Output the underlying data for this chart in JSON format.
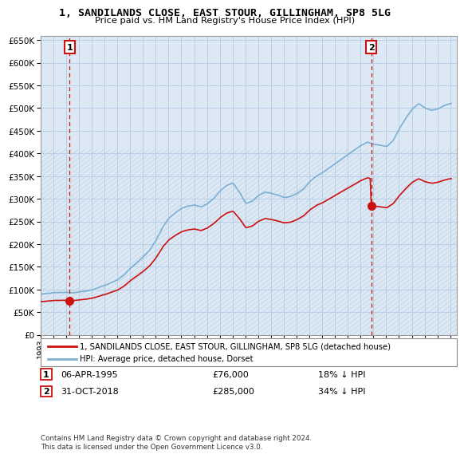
{
  "title": "1, SANDILANDS CLOSE, EAST STOUR, GILLINGHAM, SP8 5LG",
  "subtitle": "Price paid vs. HM Land Registry's House Price Index (HPI)",
  "xlim_start": 1993.0,
  "xlim_end": 2025.5,
  "ylim_min": 0,
  "ylim_max": 660000,
  "yticks": [
    0,
    50000,
    100000,
    150000,
    200000,
    250000,
    300000,
    350000,
    400000,
    450000,
    500000,
    550000,
    600000,
    650000
  ],
  "xticks": [
    1993,
    1994,
    1995,
    1996,
    1997,
    1998,
    1999,
    2000,
    2001,
    2002,
    2003,
    2004,
    2005,
    2006,
    2007,
    2008,
    2009,
    2010,
    2011,
    2012,
    2013,
    2014,
    2015,
    2016,
    2017,
    2018,
    2019,
    2020,
    2021,
    2022,
    2023,
    2024,
    2025
  ],
  "hpi_color": "#7bafd4",
  "price_color": "#cc1111",
  "bg_color": "#dce9f5",
  "sale1_x": 1995.27,
  "sale1_y": 76000,
  "sale2_x": 2018.83,
  "sale2_y": 285000,
  "legend_line1": "1, SANDILANDS CLOSE, EAST STOUR, GILLINGHAM, SP8 5LG (detached house)",
  "legend_line2": "HPI: Average price, detached house, Dorset",
  "table_row1_num": "1",
  "table_row1_date": "06-APR-1995",
  "table_row1_price": "£76,000",
  "table_row1_hpi": "18% ↓ HPI",
  "table_row2_num": "2",
  "table_row2_date": "31-OCT-2018",
  "table_row2_price": "£285,000",
  "table_row2_hpi": "34% ↓ HPI",
  "footnote": "Contains HM Land Registry data © Crown copyright and database right 2024.\nThis data is licensed under the Open Government Licence v3.0.",
  "grid_color": "#b8cfe8"
}
